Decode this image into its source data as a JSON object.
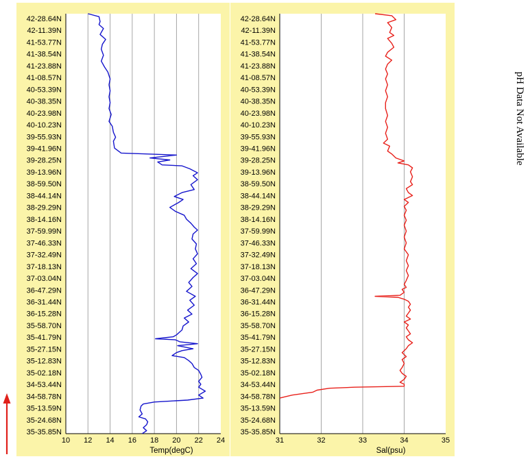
{
  "y_ticks": [
    "42-28.64N",
    "42-11.39N",
    "41-53.77N",
    "41-38.54N",
    "41-23.88N",
    "41-08.57N",
    "40-53.39N",
    "40-38.35N",
    "40-23.98N",
    "40-10.23N",
    "39-55.93N",
    "39-41.96N",
    "39-28.25N",
    "39-13.96N",
    "38-59.50N",
    "38-44.14N",
    "38-29.29N",
    "38-14.16N",
    "37-59.99N",
    "37-46.33N",
    "37-32.49N",
    "37-18.13N",
    "37-03.04N",
    "36-47.29N",
    "36-31.44N",
    "36-15.28N",
    "35-58.70N",
    "35-41.79N",
    "35-27.15N",
    "35-12.83N",
    "35-02.18N",
    "34-53.44N",
    "34-58.78N",
    "35-13.59N",
    "35-24.68N",
    "35-35.85N"
  ],
  "note": "pH Data Not Available",
  "colors": {
    "panel_bg": "#fbf4a9",
    "grid": "#a6a6a6",
    "temp_line": "#1414cc",
    "sal_line": "#e8201a",
    "arrow": "#e0201a"
  },
  "chart_data": [
    {
      "type": "line",
      "xlabel": "Temp(degC)",
      "xlim": [
        10,
        24
      ],
      "x_ticks": [
        "10",
        "12",
        "14",
        "16",
        "18",
        "20",
        "22",
        "24"
      ],
      "y_axis": "position along track (latitude labels, top = first tick)",
      "series": [
        {
          "points": [
            [
              12.0,
              0
            ],
            [
              13.0,
              0.3
            ],
            [
              13.1,
              0.8
            ],
            [
              13.0,
              1.1
            ],
            [
              13.4,
              1.5
            ],
            [
              13.1,
              2.1
            ],
            [
              13.6,
              2.6
            ],
            [
              13.3,
              3.1
            ],
            [
              13.2,
              3.6
            ],
            [
              13.4,
              4.2
            ],
            [
              13.2,
              4.8
            ],
            [
              13.5,
              5.4
            ],
            [
              13.8,
              5.9
            ],
            [
              14.0,
              6.6
            ],
            [
              13.9,
              7.2
            ],
            [
              14.0,
              7.8
            ],
            [
              13.9,
              8.4
            ],
            [
              14.0,
              9.0
            ],
            [
              13.9,
              9.6
            ],
            [
              14.1,
              10.2
            ],
            [
              13.9,
              10.9
            ],
            [
              14.2,
              11.4
            ],
            [
              14.3,
              12.0
            ],
            [
              14.5,
              12.5
            ],
            [
              14.3,
              12.9
            ],
            [
              14.4,
              13.6
            ],
            [
              15.0,
              14.1
            ],
            [
              20.0,
              14.3
            ],
            [
              17.6,
              14.6
            ],
            [
              19.4,
              14.8
            ],
            [
              18.3,
              15.0
            ],
            [
              18.7,
              15.3
            ],
            [
              20.5,
              15.4
            ],
            [
              21.2,
              15.7
            ],
            [
              21.9,
              16.1
            ],
            [
              21.5,
              16.4
            ],
            [
              21.9,
              16.8
            ],
            [
              21.3,
              17.3
            ],
            [
              21.6,
              17.8
            ],
            [
              20.5,
              18.1
            ],
            [
              19.8,
              18.5
            ],
            [
              20.6,
              18.8
            ],
            [
              20.2,
              19.1
            ],
            [
              19.4,
              19.6
            ],
            [
              19.9,
              20.0
            ],
            [
              20.7,
              20.4
            ],
            [
              20.9,
              20.8
            ],
            [
              21.3,
              21.2
            ],
            [
              21.6,
              21.6
            ],
            [
              21.9,
              21.9
            ],
            [
              21.5,
              22.3
            ],
            [
              21.4,
              22.8
            ],
            [
              21.8,
              23.3
            ],
            [
              21.7,
              23.8
            ],
            [
              21.9,
              24.3
            ],
            [
              21.5,
              24.8
            ],
            [
              21.8,
              25.3
            ],
            [
              21.3,
              25.8
            ],
            [
              21.9,
              26.3
            ],
            [
              21.5,
              26.7
            ],
            [
              21.1,
              27.2
            ],
            [
              21.4,
              27.6
            ],
            [
              20.9,
              28.1
            ],
            [
              21.7,
              28.6
            ],
            [
              21.2,
              29.0
            ],
            [
              21.6,
              29.5
            ],
            [
              21.0,
              30.0
            ],
            [
              21.4,
              30.4
            ],
            [
              20.7,
              30.8
            ],
            [
              21.1,
              31.2
            ],
            [
              20.6,
              31.6
            ],
            [
              20.5,
              32.0
            ],
            [
              20.2,
              32.3
            ],
            [
              20.0,
              32.5
            ],
            [
              19.7,
              32.7
            ],
            [
              18.1,
              32.9
            ],
            [
              19.9,
              33.0
            ],
            [
              20.3,
              33.2
            ],
            [
              21.9,
              33.4
            ],
            [
              20.1,
              33.6
            ],
            [
              21.5,
              33.9
            ],
            [
              20.5,
              34.1
            ],
            [
              20.0,
              34.3
            ],
            [
              19.6,
              34.6
            ],
            [
              20.7,
              34.8
            ],
            [
              21.1,
              35.1
            ],
            [
              21.4,
              35.4
            ],
            [
              21.6,
              35.8
            ],
            [
              22.0,
              36.1
            ],
            [
              22.2,
              36.5
            ],
            [
              22.3,
              36.8
            ],
            [
              22.0,
              37.2
            ],
            [
              22.2,
              37.5
            ],
            [
              22.0,
              37.8
            ],
            [
              22.6,
              38.2
            ],
            [
              22.0,
              38.6
            ],
            [
              22.4,
              38.9
            ],
            [
              21.0,
              39.1
            ],
            [
              18.0,
              39.3
            ],
            [
              17.0,
              39.5
            ],
            [
              16.8,
              39.7
            ],
            [
              16.7,
              40.1
            ],
            [
              16.9,
              40.5
            ],
            [
              16.6,
              40.8
            ],
            [
              17.2,
              41.0
            ],
            [
              17.4,
              41.3
            ],
            [
              17.3,
              41.6
            ],
            [
              17.0,
              41.9
            ],
            [
              17.3,
              42.2
            ],
            [
              16.9,
              42.5
            ]
          ]
        }
      ]
    },
    {
      "type": "line",
      "xlabel": "Sal(psu)",
      "xlim": [
        31,
        35
      ],
      "x_ticks": [
        "31",
        "32",
        "33",
        "34",
        "35"
      ],
      "series": [
        {
          "points": [
            [
              33.3,
              0
            ],
            [
              33.7,
              0.2
            ],
            [
              33.8,
              0.6
            ],
            [
              33.6,
              0.9
            ],
            [
              33.7,
              1.4
            ],
            [
              33.65,
              1.9
            ],
            [
              33.75,
              2.2
            ],
            [
              33.6,
              2.5
            ],
            [
              33.7,
              3.0
            ],
            [
              33.75,
              3.4
            ],
            [
              33.6,
              3.9
            ],
            [
              33.55,
              4.3
            ],
            [
              33.7,
              4.7
            ],
            [
              33.6,
              5.1
            ],
            [
              33.55,
              5.6
            ],
            [
              33.6,
              6.1
            ],
            [
              33.55,
              6.6
            ],
            [
              33.6,
              7.2
            ],
            [
              33.55,
              7.8
            ],
            [
              33.6,
              8.4
            ],
            [
              33.55,
              9.0
            ],
            [
              33.55,
              9.6
            ],
            [
              33.6,
              10.3
            ],
            [
              33.55,
              10.9
            ],
            [
              33.6,
              11.5
            ],
            [
              33.55,
              12.1
            ],
            [
              33.6,
              12.7
            ],
            [
              33.5,
              13.1
            ],
            [
              33.65,
              13.4
            ],
            [
              33.6,
              13.9
            ],
            [
              33.7,
              14.2
            ],
            [
              33.8,
              14.6
            ],
            [
              34.0,
              14.9
            ],
            [
              33.85,
              15.1
            ],
            [
              34.1,
              15.3
            ],
            [
              34.2,
              15.6
            ],
            [
              34.15,
              16.0
            ],
            [
              34.2,
              16.5
            ],
            [
              34.15,
              17.0
            ],
            [
              34.2,
              17.3
            ],
            [
              34.05,
              17.7
            ],
            [
              34.1,
              18.1
            ],
            [
              34.2,
              18.4
            ],
            [
              34.0,
              18.8
            ],
            [
              34.1,
              19.1
            ],
            [
              34.0,
              19.5
            ],
            [
              34.05,
              19.9
            ],
            [
              34.0,
              20.4
            ],
            [
              34.05,
              20.9
            ],
            [
              34.0,
              21.4
            ],
            [
              34.05,
              22.0
            ],
            [
              34.0,
              22.6
            ],
            [
              34.05,
              23.2
            ],
            [
              34.0,
              23.8
            ],
            [
              34.1,
              24.4
            ],
            [
              34.05,
              25.0
            ],
            [
              34.1,
              25.5
            ],
            [
              34.05,
              26.0
            ],
            [
              34.1,
              26.5
            ],
            [
              34.05,
              27.0
            ],
            [
              34.0,
              27.4
            ],
            [
              34.05,
              27.7
            ],
            [
              33.95,
              27.9
            ],
            [
              34.0,
              28.2
            ],
            [
              33.9,
              28.5
            ],
            [
              33.3,
              28.6
            ],
            [
              33.85,
              28.7
            ],
            [
              34.0,
              28.9
            ],
            [
              34.1,
              29.1
            ],
            [
              34.15,
              29.4
            ],
            [
              34.1,
              29.7
            ],
            [
              34.15,
              30.0
            ],
            [
              34.1,
              30.3
            ],
            [
              34.05,
              30.6
            ],
            [
              34.15,
              30.9
            ],
            [
              34.0,
              31.2
            ],
            [
              34.1,
              31.5
            ],
            [
              34.05,
              31.8
            ],
            [
              34.1,
              32.1
            ],
            [
              34.15,
              32.4
            ],
            [
              34.05,
              32.7
            ],
            [
              34.1,
              33.0
            ],
            [
              34.2,
              33.3
            ],
            [
              34.1,
              33.6
            ],
            [
              34.05,
              33.9
            ],
            [
              33.95,
              34.3
            ],
            [
              34.05,
              34.7
            ],
            [
              33.95,
              35.0
            ],
            [
              34.0,
              35.4
            ],
            [
              33.95,
              35.8
            ],
            [
              33.9,
              36.1
            ],
            [
              33.95,
              36.4
            ],
            [
              34.05,
              36.7
            ],
            [
              34.0,
              37.0
            ],
            [
              33.9,
              37.3
            ],
            [
              34.0,
              37.5
            ],
            [
              34.0,
              37.7
            ],
            [
              32.8,
              37.8
            ],
            [
              32.2,
              37.9
            ],
            [
              31.9,
              38.1
            ],
            [
              31.8,
              38.3
            ],
            [
              31.3,
              38.6
            ],
            [
              31.1,
              38.8
            ],
            [
              31.0,
              38.9
            ]
          ]
        }
      ]
    }
  ]
}
